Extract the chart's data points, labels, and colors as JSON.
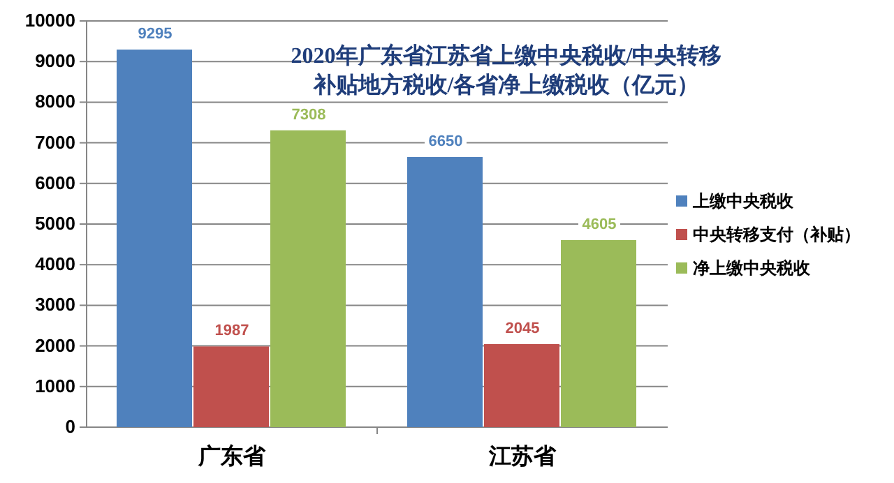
{
  "chart_data": {
    "type": "bar",
    "title": "2020年广东省江苏省上缴中央税收/中央转移补贴地方税收/各省净上缴税收（亿元）",
    "categories": [
      "广东省",
      "江苏省"
    ],
    "series": [
      {
        "name": "上缴中央税收",
        "color": "#4f81bd",
        "values": [
          9295,
          6650
        ]
      },
      {
        "name": "中央转移支付（补贴）",
        "color": "#c0504d",
        "values": [
          1987,
          2045
        ]
      },
      {
        "name": "净上缴中央税收",
        "color": "#9bbb59",
        "values": [
          7308,
          4605
        ]
      }
    ],
    "ylim": [
      0,
      10000
    ],
    "yticks": [
      0,
      1000,
      2000,
      3000,
      4000,
      5000,
      6000,
      7000,
      8000,
      9000,
      10000
    ],
    "grid": "y",
    "legend": "right",
    "data_labels": true
  }
}
